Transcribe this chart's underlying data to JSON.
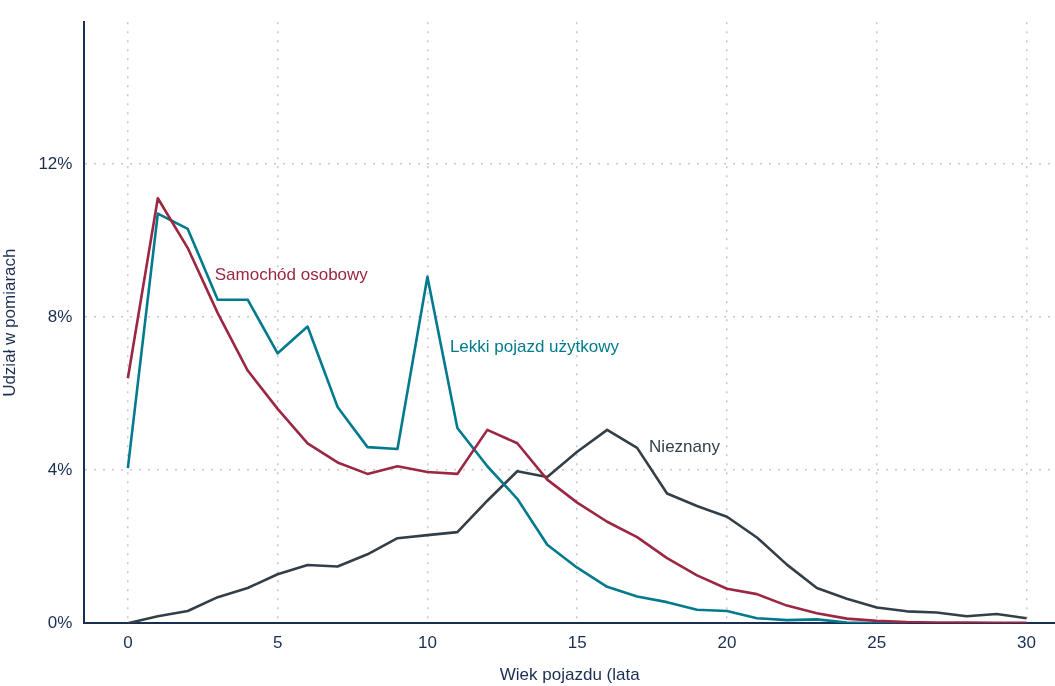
{
  "chart_data": {
    "type": "line",
    "xlabel": "Wiek pojazdu (lata",
    "ylabel": "Udział w pomiarach",
    "x": [
      0,
      1,
      2,
      3,
      4,
      5,
      6,
      7,
      8,
      9,
      10,
      11,
      12,
      13,
      14,
      15,
      16,
      17,
      18,
      19,
      20,
      21,
      22,
      23,
      24,
      25,
      26,
      27,
      28,
      29,
      30
    ],
    "series": [
      {
        "name": "Samochód osobowy",
        "color": "#9b2743",
        "values": [
          6.4,
          11.1,
          9.8,
          8.1,
          6.6,
          5.6,
          4.7,
          4.2,
          3.9,
          4.1,
          3.95,
          3.9,
          5.05,
          4.7,
          3.75,
          3.15,
          2.65,
          2.25,
          1.7,
          1.25,
          0.9,
          0.76,
          0.46,
          0.26,
          0.12,
          0.06,
          0.03,
          0.02,
          0.02,
          0.01,
          0.01
        ]
      },
      {
        "name": "Lekki pojazd użytkowy",
        "color": "#007a8c",
        "values": [
          4.05,
          10.7,
          10.3,
          8.45,
          8.45,
          7.05,
          7.75,
          5.65,
          4.6,
          4.55,
          9.05,
          5.1,
          4.1,
          3.25,
          2.05,
          1.45,
          0.95,
          0.7,
          0.55,
          0.35,
          0.32,
          0.13,
          0.08,
          0.1,
          0.02,
          0,
          0,
          null,
          null,
          null,
          null
        ]
      },
      {
        "name": "Nieznany",
        "color": "#333f48",
        "values": [
          0,
          0.18,
          0.32,
          0.68,
          0.92,
          1.28,
          1.52,
          1.48,
          1.8,
          2.22,
          2.3,
          2.38,
          3.2,
          3.97,
          3.82,
          4.48,
          5.05,
          4.58,
          3.39,
          3.06,
          2.78,
          2.24,
          1.53,
          0.92,
          0.64,
          0.41,
          0.31,
          0.28,
          0.18,
          0.24,
          0.13
        ]
      }
    ],
    "xlim": [
      -1.45,
      30.95
    ],
    "xticks": [
      0,
      5,
      10,
      15,
      20,
      25,
      30
    ],
    "ylim": [
      0,
      15.7
    ],
    "yticks": [
      {
        "value": 0,
        "label": "0%"
      },
      {
        "value": 4,
        "label": "4%"
      },
      {
        "value": 8,
        "label": "8%"
      },
      {
        "value": 12,
        "label": "12%"
      }
    ],
    "grid": true,
    "legend": false,
    "marker": "none",
    "line_style": "solid"
  }
}
